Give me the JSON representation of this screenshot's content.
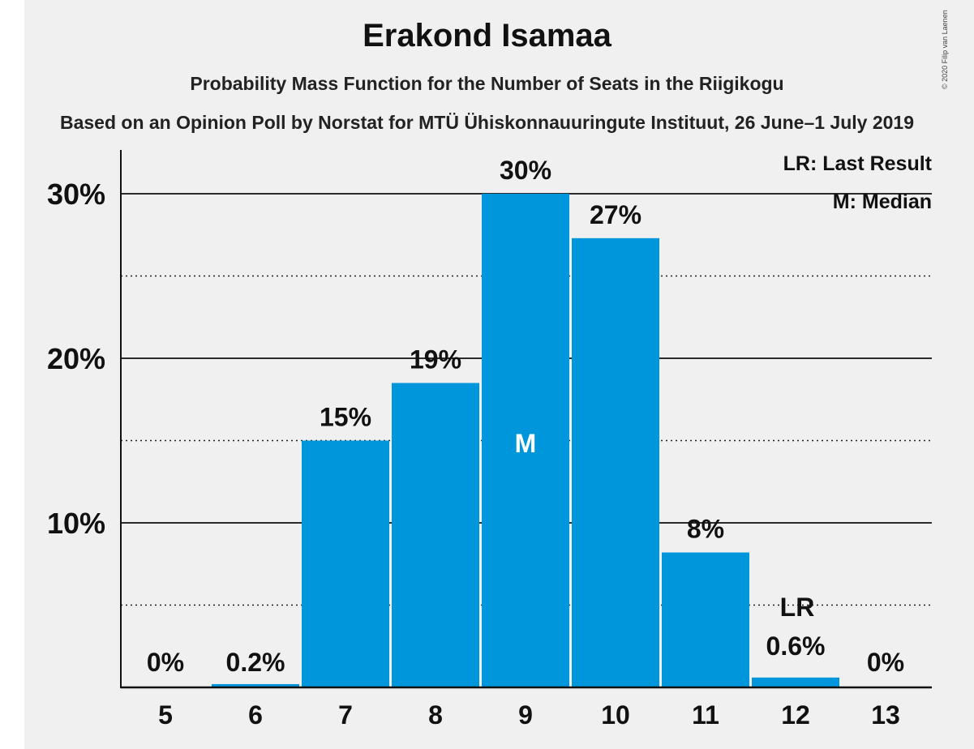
{
  "title": "Erakond Isamaa",
  "subtitle": "Probability Mass Function for the Number of Seats in the Riigikogu",
  "source": "Based on an Opinion Poll by Norstat for MTÜ Ühiskonnauuringute Instituut, 26 June–1 July 2019",
  "copyright": "© 2020 Filip van Laenen",
  "legend": {
    "last_result": "LR: Last Result",
    "median": "M: Median"
  },
  "colors": {
    "bar": "#0096db",
    "background": "#f0f0f0"
  },
  "chart_data": {
    "type": "bar",
    "title": "Erakond Isamaa",
    "categories": [
      "5",
      "6",
      "7",
      "8",
      "9",
      "10",
      "11",
      "12",
      "13"
    ],
    "values": [
      0,
      0.2,
      15,
      18.5,
      30,
      27.3,
      8.2,
      0.6,
      0
    ],
    "value_labels": [
      "0%",
      "0.2%",
      "15%",
      "19%",
      "30%",
      "27%",
      "8%",
      "0.6%",
      "0%"
    ],
    "ylim": [
      0,
      32
    ],
    "yticks": [
      10,
      20,
      30
    ],
    "ytick_labels": [
      "10%",
      "20%",
      "30%"
    ],
    "minor_gridlines": [
      5,
      15,
      25
    ],
    "median_category": "9",
    "median_marker": "M",
    "last_result_category": "12",
    "last_result_marker": "LR",
    "legend_position": "top-right"
  }
}
